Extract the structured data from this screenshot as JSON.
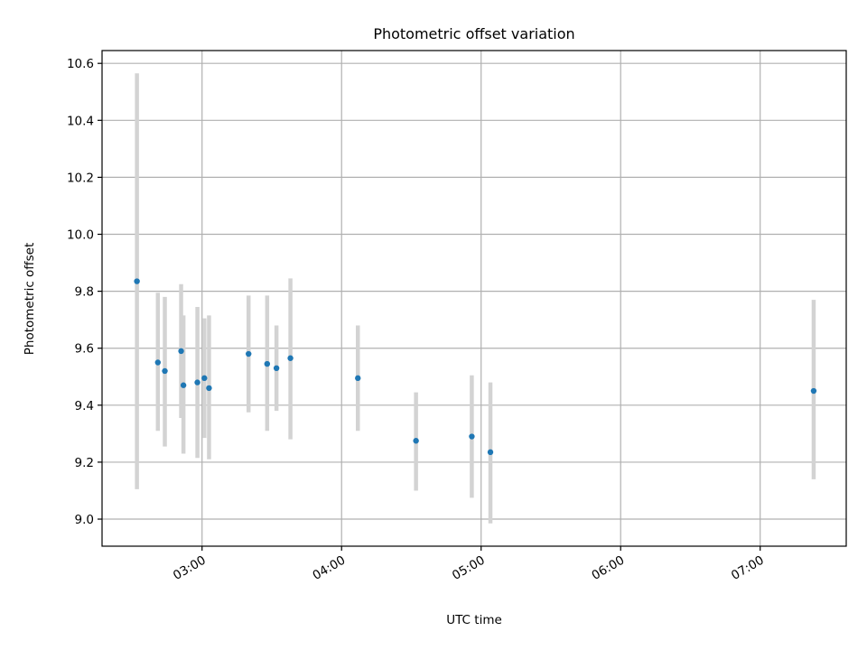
{
  "chart_data": {
    "type": "scatter",
    "title": "Photometric offset variation",
    "xlabel": "UTC time",
    "ylabel": "Photometric offset",
    "xlim": [
      "02:17",
      "07:37"
    ],
    "ylim": [
      8.905,
      10.645
    ],
    "x_ticks": [
      "03:00",
      "04:00",
      "05:00",
      "06:00",
      "07:00"
    ],
    "y_ticks": [
      9.0,
      9.2,
      9.4,
      9.6,
      9.8,
      10.0,
      10.2,
      10.4,
      10.6
    ],
    "y_tick_labels": [
      "9.0",
      "9.2",
      "9.4",
      "9.6",
      "9.8",
      "10.0",
      "10.2",
      "10.4",
      "10.6"
    ],
    "grid": true,
    "point_color": "#1f77b4",
    "errorbar_color": "#d3d3d3",
    "points": [
      {
        "x": "02:32",
        "y": 9.835,
        "yerr": [
          9.105,
          10.565
        ]
      },
      {
        "x": "02:41",
        "y": 9.55,
        "yerr": [
          9.31,
          9.795
        ]
      },
      {
        "x": "02:44",
        "y": 9.52,
        "yerr": [
          9.255,
          9.78
        ]
      },
      {
        "x": "02:51",
        "y": 9.59,
        "yerr": [
          9.355,
          9.825
        ]
      },
      {
        "x": "02:52",
        "y": 9.47,
        "yerr": [
          9.23,
          9.715
        ]
      },
      {
        "x": "02:58",
        "y": 9.48,
        "yerr": [
          9.215,
          9.745
        ]
      },
      {
        "x": "03:01",
        "y": 9.495,
        "yerr": [
          9.285,
          9.705
        ]
      },
      {
        "x": "03:03",
        "y": 9.46,
        "yerr": [
          9.21,
          9.715
        ]
      },
      {
        "x": "03:20",
        "y": 9.58,
        "yerr": [
          9.375,
          9.785
        ]
      },
      {
        "x": "03:28",
        "y": 9.545,
        "yerr": [
          9.31,
          9.785
        ]
      },
      {
        "x": "03:32",
        "y": 9.53,
        "yerr": [
          9.38,
          9.68
        ]
      },
      {
        "x": "03:38",
        "y": 9.565,
        "yerr": [
          9.28,
          9.845
        ]
      },
      {
        "x": "04:07",
        "y": 9.495,
        "yerr": [
          9.31,
          9.68
        ]
      },
      {
        "x": "04:32",
        "y": 9.275,
        "yerr": [
          9.1,
          9.445
        ]
      },
      {
        "x": "04:56",
        "y": 9.29,
        "yerr": [
          9.075,
          9.505
        ]
      },
      {
        "x": "05:04",
        "y": 9.235,
        "yerr": [
          8.985,
          9.48
        ]
      },
      {
        "x": "07:23",
        "y": 9.45,
        "yerr": [
          9.14,
          9.77
        ]
      }
    ]
  }
}
